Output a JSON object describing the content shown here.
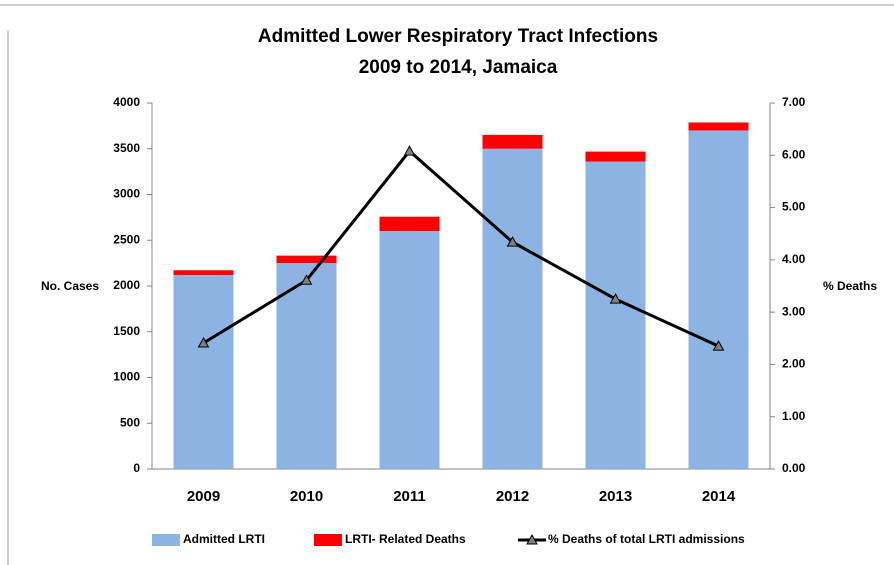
{
  "chart_data": {
    "type": "bar",
    "stacked": true,
    "title": "Admitted Lower Respiratory Tract Infections",
    "subtitle": "2009 to 2014, Jamaica",
    "y_label": "No. Cases",
    "y2_label": "% Deaths",
    "categories": [
      "2009",
      "2010",
      "2011",
      "2012",
      "2013",
      "2014"
    ],
    "series": [
      {
        "name": "Admitted LRTI",
        "type": "bar",
        "color": "#8db3e2",
        "values": [
          2120,
          2250,
          2600,
          3500,
          3360,
          3700
        ]
      },
      {
        "name": "LRTI- Related Deaths",
        "type": "bar",
        "color": "#ff0000",
        "values": [
          52,
          82,
          157,
          151,
          109,
          87
        ]
      },
      {
        "name": "% Deaths of total LRTI admissions",
        "type": "line",
        "axis": "y2",
        "color": "#000000",
        "values": [
          2.41,
          3.61,
          6.08,
          4.34,
          3.25,
          2.35
        ]
      }
    ],
    "ylim": [
      0,
      4000
    ],
    "yticks": [
      0,
      500,
      1000,
      1500,
      2000,
      2500,
      3000,
      3500,
      4000
    ],
    "y2lim": [
      0,
      7
    ],
    "y2ticks": [
      {
        "value": 0,
        "label": "0.00"
      },
      {
        "value": 1,
        "label": "1.00"
      },
      {
        "value": 2,
        "label": "2.00"
      },
      {
        "value": 3,
        "label": "3.00"
      },
      {
        "value": 4,
        "label": "4.00"
      },
      {
        "value": 5,
        "label": "5.00"
      },
      {
        "value": 6,
        "label": "6.00"
      },
      {
        "value": 7,
        "label": "7.00"
      }
    ],
    "grid": false,
    "legend": "bottom"
  }
}
